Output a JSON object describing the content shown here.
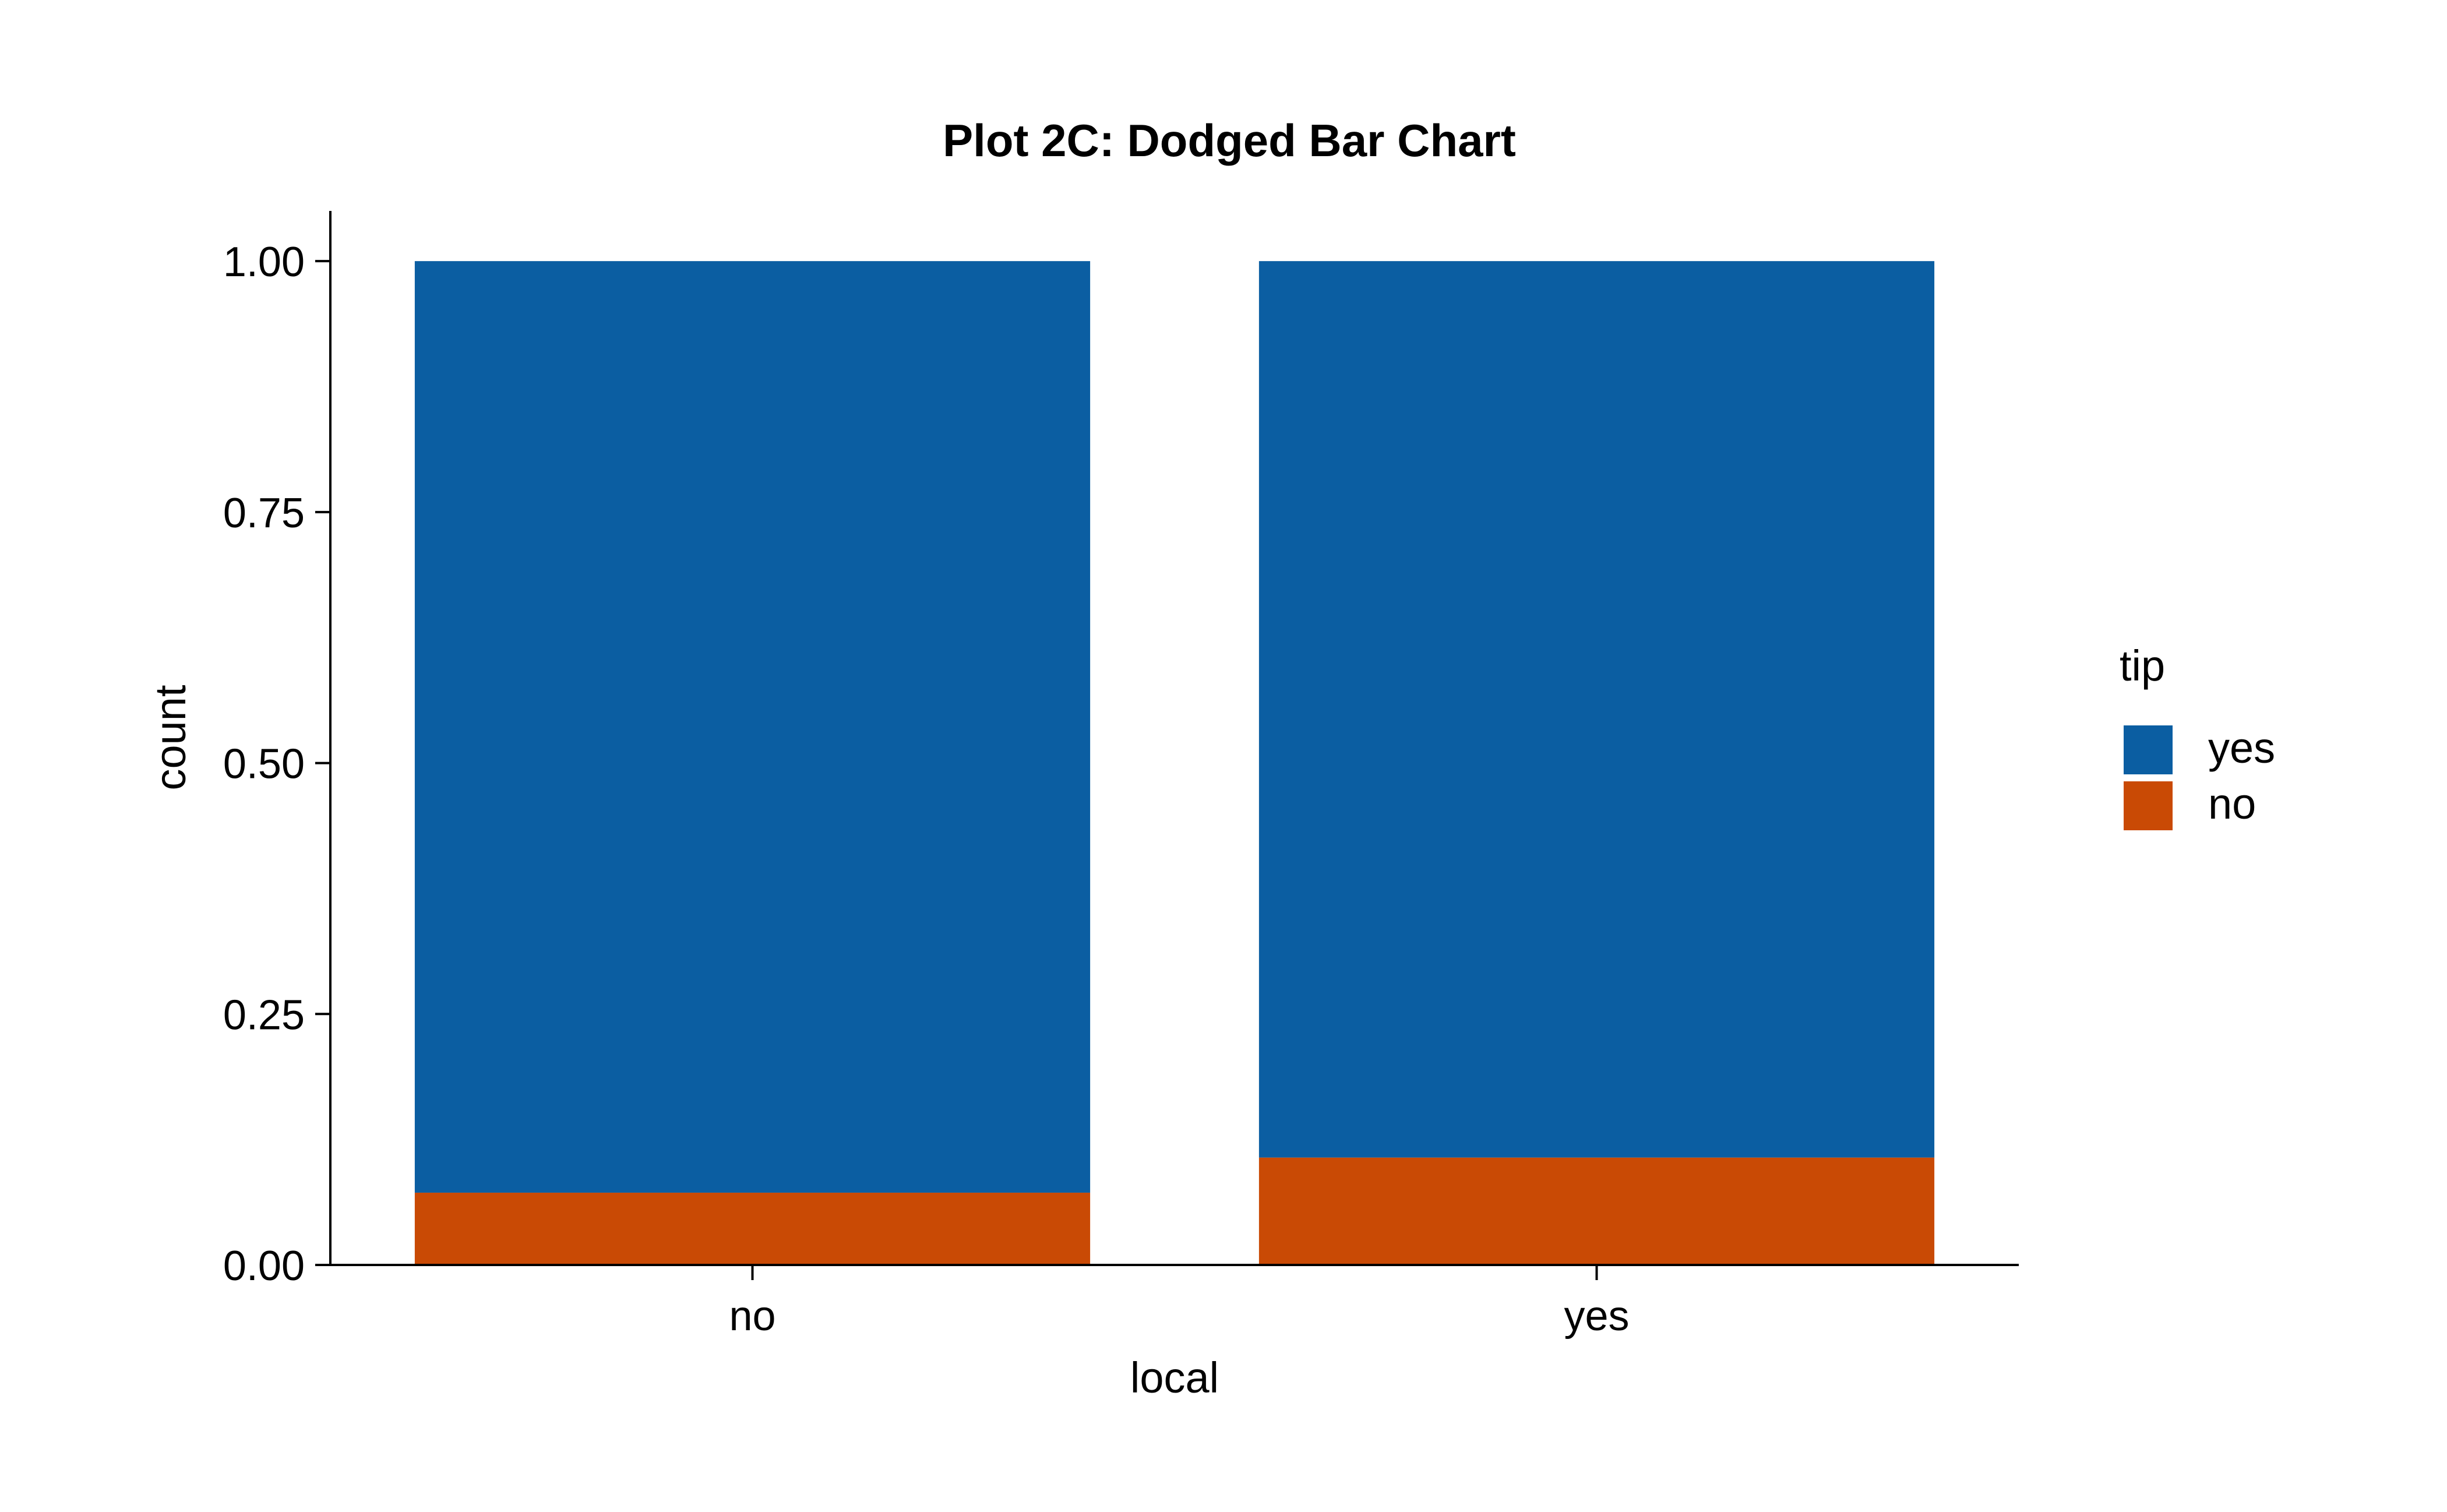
{
  "chart_data": {
    "type": "bar",
    "stacked": true,
    "title": "Plot 2C: Dodged Bar Chart",
    "xlabel": "local",
    "ylabel": "count",
    "categories": [
      "no",
      "yes"
    ],
    "ylim": [
      0,
      1.05
    ],
    "yticks": [
      "0.00",
      "0.25",
      "0.50",
      "0.75",
      "1.00"
    ],
    "legend": {
      "title": "tip",
      "position": "right"
    },
    "series": [
      {
        "name": "yes",
        "color": "#0b5ea2",
        "values": [
          0.928,
          0.893
        ]
      },
      {
        "name": "no",
        "color": "#c94a05",
        "values": [
          0.072,
          0.107
        ]
      }
    ],
    "grid": false
  }
}
